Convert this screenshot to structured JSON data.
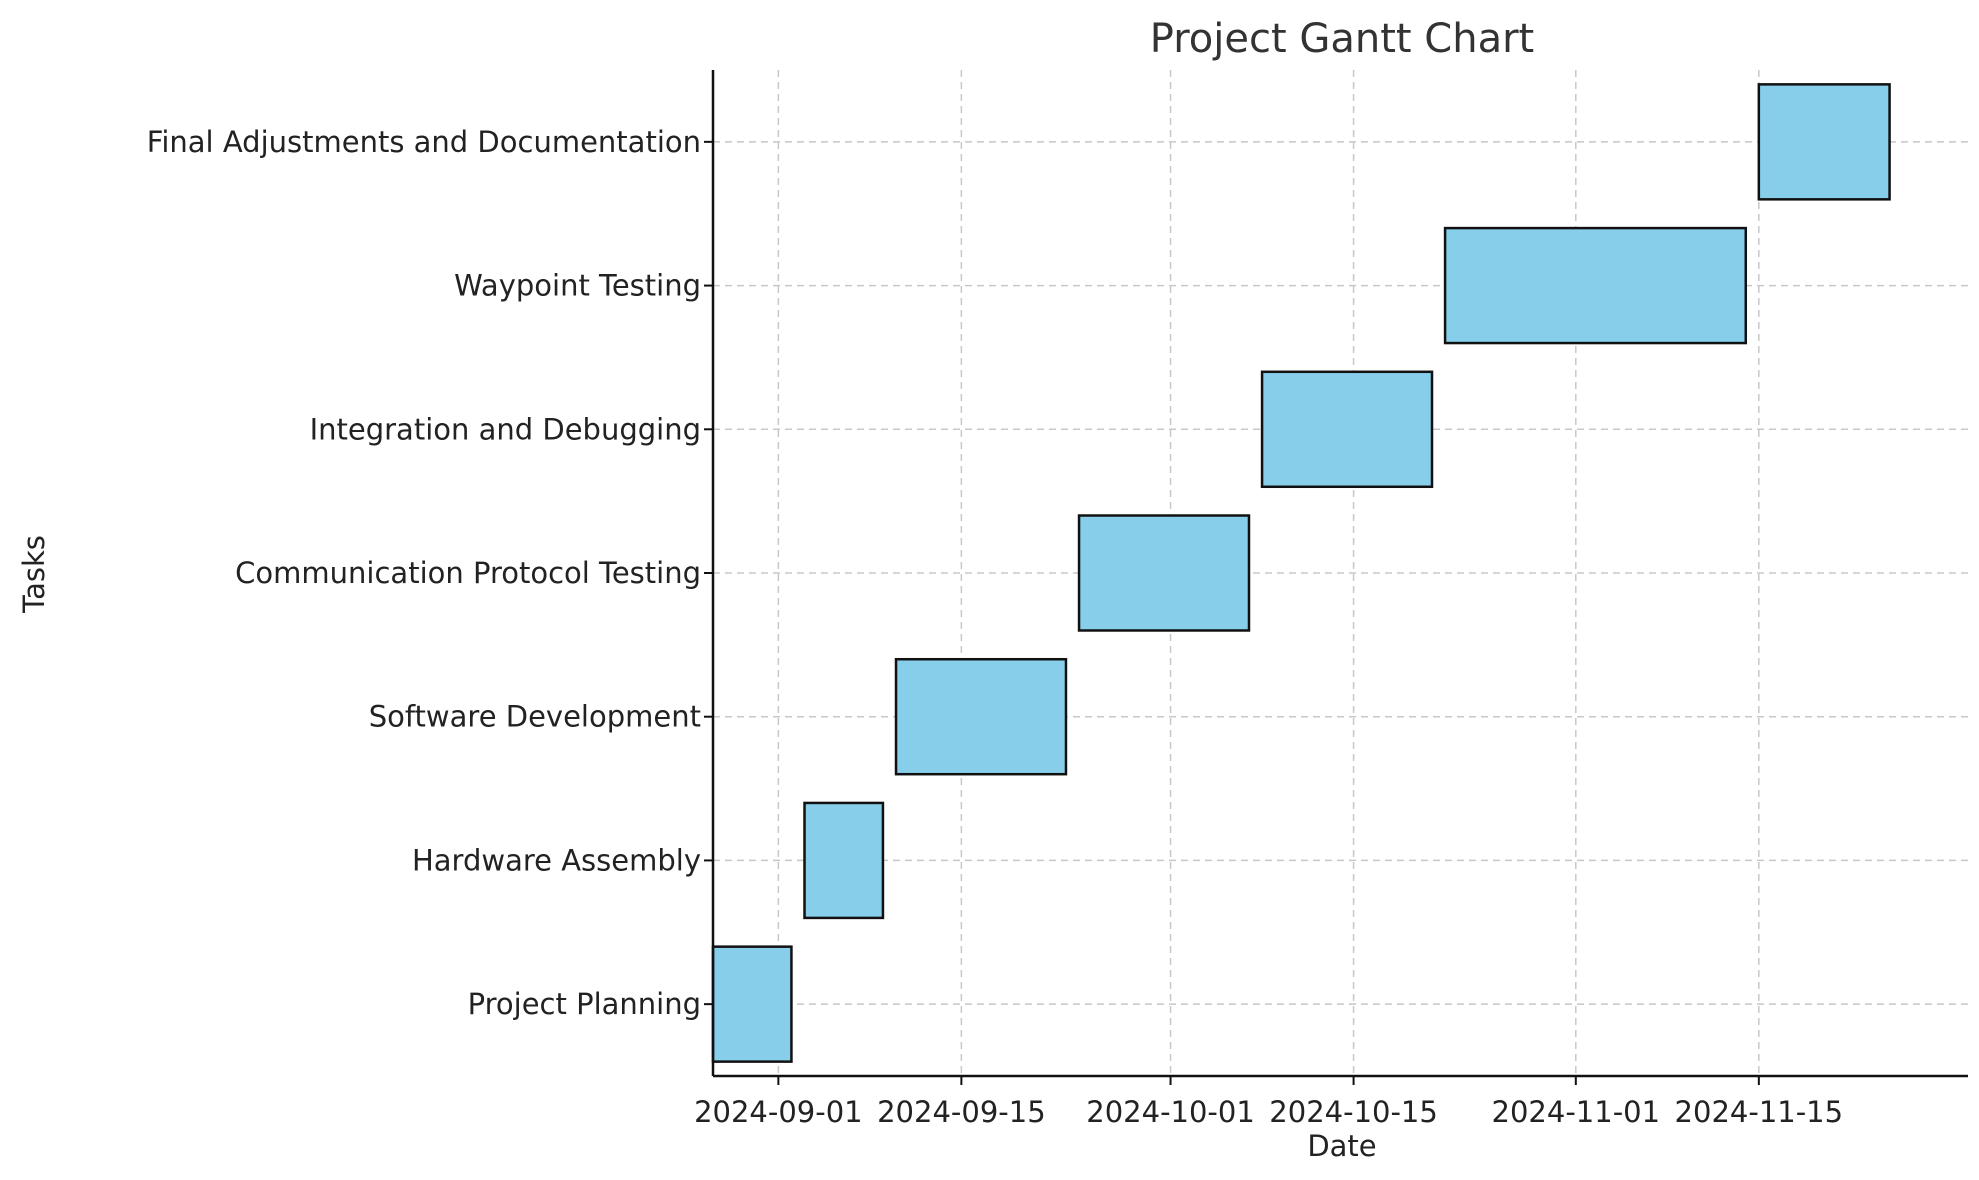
{
  "chart_data": {
    "type": "bar",
    "orientation": "horizontal",
    "title": "Project Gantt Chart",
    "xlabel": "Date",
    "ylabel": "Tasks",
    "grid": true,
    "bar_color": "#87ceeb",
    "edge_color": "#111111",
    "xlim": [
      "2024-08-27",
      "2024-12-01"
    ],
    "x_ticks": [
      "2024-09-01",
      "2024-09-15",
      "2024-10-01",
      "2024-10-15",
      "2024-11-01",
      "2024-11-15"
    ],
    "tasks": [
      {
        "name": "Project Planning",
        "start": "2024-08-27",
        "end": "2024-09-02"
      },
      {
        "name": "Hardware Assembly",
        "start": "2024-09-03",
        "end": "2024-09-09"
      },
      {
        "name": "Software Development",
        "start": "2024-09-10",
        "end": "2024-09-23"
      },
      {
        "name": "Communication Protocol Testing",
        "start": "2024-09-24",
        "end": "2024-10-07"
      },
      {
        "name": "Integration and Debugging",
        "start": "2024-10-08",
        "end": "2024-10-21"
      },
      {
        "name": "Waypoint Testing",
        "start": "2024-10-22",
        "end": "2024-11-14"
      },
      {
        "name": "Final Adjustments and Documentation",
        "start": "2024-11-15",
        "end": "2024-11-25"
      }
    ]
  }
}
